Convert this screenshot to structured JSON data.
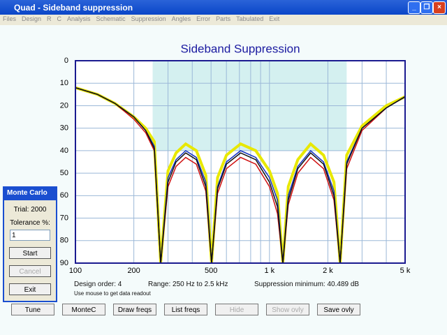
{
  "window": {
    "title": "Quad - Sideband suppression"
  },
  "menu": [
    "Files",
    "Design",
    "R",
    "C",
    "Analysis",
    "Schematic",
    "Suppression",
    "Angles",
    "Error",
    "Parts",
    "Tabulated",
    "Exit"
  ],
  "chart": {
    "type": "line",
    "title": "Sideband Suppression",
    "x": [
      100,
      130,
      160,
      200,
      230,
      255,
      275,
      300,
      330,
      370,
      420,
      470,
      503,
      540,
      600,
      710,
      850,
      1000,
      1100,
      1172,
      1250,
      1400,
      1630,
      1900,
      2150,
      2313,
      2500,
      3000,
      4000,
      5000
    ],
    "series": [
      {
        "color": "#e8e800",
        "values": [
          12,
          15,
          19,
          25,
          30,
          36,
          90,
          49,
          41,
          37,
          40,
          51,
          90,
          52,
          42,
          37,
          40,
          49,
          59,
          90,
          56,
          44,
          37,
          42,
          54,
          90,
          42,
          29,
          20,
          16
        ]
      },
      {
        "color": "#d01010",
        "values": [
          12,
          15,
          19,
          26,
          32,
          40,
          90,
          56,
          47,
          43,
          46,
          58,
          90,
          59,
          48,
          43,
          46,
          56,
          68,
          90,
          64,
          50,
          43,
          48,
          62,
          90,
          48,
          31,
          21,
          16
        ]
      },
      {
        "color": "#1030c0",
        "values": [
          12,
          15,
          19,
          25,
          31,
          38,
          90,
          52,
          44,
          40,
          43,
          54,
          90,
          56,
          45,
          40,
          43,
          52,
          62,
          90,
          60,
          47,
          40,
          45,
          58,
          90,
          45,
          30,
          21,
          16
        ]
      },
      {
        "color": "#101010",
        "values": [
          12,
          15,
          19,
          25,
          31,
          39,
          90,
          54,
          45,
          41,
          44,
          56,
          90,
          57,
          46,
          41,
          44,
          54,
          65,
          90,
          62,
          48,
          41,
          46,
          60,
          90,
          46,
          30,
          21,
          16
        ]
      }
    ],
    "xlim": [
      100,
      5000
    ],
    "xscale": "log",
    "xticks": [
      100,
      200,
      500,
      {
        "value": 1000,
        "label": "1 k"
      },
      {
        "value": 2000,
        "label": "2 k"
      },
      {
        "value": 5000,
        "label": "5 k"
      }
    ],
    "xgrid": [
      300,
      400,
      600,
      700,
      800,
      900,
      3000,
      4000
    ],
    "ylim": [
      0,
      90
    ],
    "yticks": [
      0,
      10,
      20,
      30,
      40,
      50,
      60,
      70,
      80,
      90
    ],
    "yinverted": true,
    "passband": [
      250,
      2500
    ],
    "passband_level": 40
  },
  "status": {
    "order": "Design order:  4",
    "range": "Range:  250 Hz to  2.5 kHz",
    "minimum": "Suppression minimum: 40.489 dB",
    "hint": "Use mouse to get data readout"
  },
  "monte_carlo": {
    "title": "Monte Carlo",
    "trial": "Trial: 2000",
    "tolerance_label": "Tolerance %:",
    "tolerance": "1",
    "start": "Start",
    "cancel": "Cancel",
    "exit": "Exit"
  },
  "buttons": [
    "Tune",
    "MonteC",
    "Draw freqs",
    "List freqs",
    "Hide",
    "Show ovly",
    "Save ovly"
  ]
}
